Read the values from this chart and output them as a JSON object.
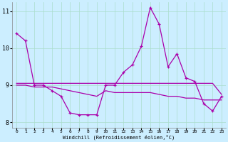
{
  "xlabel": "Windchill (Refroidissement éolien,°C)",
  "x": [
    0,
    1,
    2,
    3,
    4,
    5,
    6,
    7,
    8,
    9,
    10,
    11,
    12,
    13,
    14,
    15,
    16,
    17,
    18,
    19,
    20,
    21,
    22,
    23
  ],
  "y_line1": [
    10.4,
    10.2,
    9.0,
    9.0,
    8.85,
    8.7,
    8.25,
    8.2,
    8.2,
    8.2,
    9.0,
    9.0,
    9.35,
    9.55,
    10.05,
    11.1,
    10.65,
    9.5,
    9.85,
    9.2,
    9.1,
    8.5,
    8.3,
    8.7
  ],
  "y_line2": [
    9.05,
    9.05,
    9.05,
    9.05,
    9.05,
    9.05,
    9.05,
    9.05,
    9.05,
    9.05,
    9.05,
    9.05,
    9.05,
    9.05,
    9.05,
    9.05,
    9.05,
    9.05,
    9.05,
    9.05,
    9.05,
    9.05,
    9.05,
    8.75
  ],
  "y_line3": [
    9.0,
    9.0,
    8.95,
    8.95,
    8.95,
    8.9,
    8.85,
    8.8,
    8.75,
    8.7,
    8.85,
    8.8,
    8.8,
    8.8,
    8.8,
    8.8,
    8.75,
    8.7,
    8.7,
    8.65,
    8.65,
    8.6,
    8.6,
    8.6
  ],
  "line_color": "#aa00aa",
  "bg_color": "#cceeff",
  "grid_color": "#aaddcc",
  "ylim": [
    7.85,
    11.25
  ],
  "yticks": [
    8,
    9,
    10,
    11
  ],
  "xticks": [
    0,
    1,
    2,
    3,
    4,
    5,
    6,
    7,
    8,
    9,
    10,
    11,
    12,
    13,
    14,
    15,
    16,
    17,
    18,
    19,
    20,
    21,
    22,
    23
  ]
}
